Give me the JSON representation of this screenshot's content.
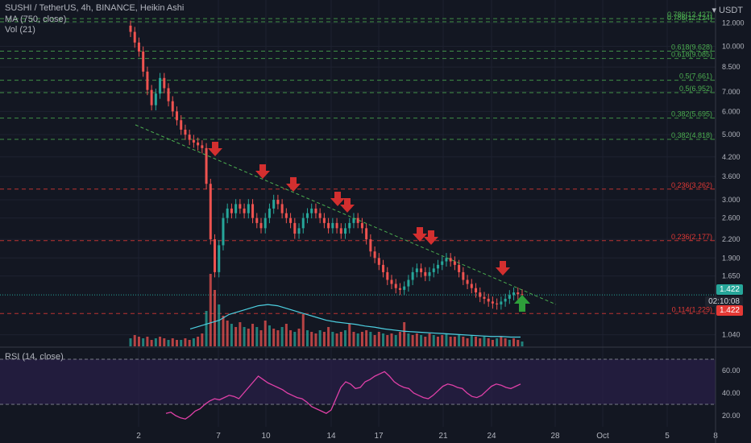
{
  "header": {
    "title_line": "SUSHI / TetherUS, 4h, BINANCE, Heikin Ashi",
    "ma_line": "MA (750, close)",
    "vol_line": "Vol (21)",
    "rsi_line": "RSI (14, close)",
    "currency": "USDT"
  },
  "colors": {
    "background": "#131722",
    "up": "#26a69a",
    "down": "#ef5350",
    "fib_green": "#4caf50",
    "fib_red": "#e53935",
    "trendline": "#4caf50",
    "ma_line": "#4dd0e1",
    "rsi_line": "#e040a8",
    "rsi_band": "#2a1f48",
    "arrow_down": "#d32f2f",
    "arrow_up": "#2e9e3a"
  },
  "price_tags": {
    "last": "1.422",
    "countdown": "02:10:08",
    "fib_level": "1.422"
  },
  "chart_data": [
    {
      "type": "candlestick",
      "scale": "log",
      "y_ticks": [
        "12.000",
        "10.000",
        "8.500",
        "7.000",
        "6.000",
        "5.000",
        "4.200",
        "3.600",
        "3.000",
        "2.600",
        "2.200",
        "1.900",
        "1.650",
        "1.040"
      ],
      "x_ticks": [
        "2",
        "7",
        "10",
        "14",
        "17",
        "21",
        "24",
        "28",
        "Oct",
        "5",
        "8"
      ],
      "fib_levels": [
        {
          "label": "0.786(12.427)",
          "value": 12.427,
          "color": "green"
        },
        {
          "label": "0.786(12.124)",
          "value": 12.124,
          "color": "green"
        },
        {
          "label": "0.618(9.628)",
          "value": 9.628,
          "color": "green"
        },
        {
          "label": "0.618(9.085)",
          "value": 9.085,
          "color": "green"
        },
        {
          "label": "0.5(7.661)",
          "value": 7.661,
          "color": "green"
        },
        {
          "label": "0.5(6.952)",
          "value": 6.952,
          "color": "green"
        },
        {
          "label": "0.382(5.695)",
          "value": 5.695,
          "color": "green"
        },
        {
          "label": "0.382(4.818)",
          "value": 4.818,
          "color": "green"
        },
        {
          "label": "0.236(3.262)",
          "value": 3.262,
          "color": "red"
        },
        {
          "label": "0.236(2.177)",
          "value": 2.177,
          "color": "red"
        },
        {
          "label": "0.114(1.229)",
          "value": 1.229,
          "color": "red"
        }
      ],
      "candles": [
        11.2,
        10.3,
        9.6,
        8.2,
        7.1,
        6.3,
        6.9,
        7.8,
        7.2,
        6.5,
        6.0,
        5.6,
        5.2,
        5.0,
        4.8,
        4.7,
        4.6,
        4.5,
        3.4,
        2.2,
        1.7,
        2.1,
        2.6,
        2.8,
        2.7,
        2.9,
        2.8,
        2.7,
        2.9,
        2.6,
        2.5,
        2.4,
        2.6,
        2.8,
        3.0,
        2.9,
        2.7,
        2.6,
        2.5,
        2.3,
        2.4,
        2.6,
        2.7,
        2.8,
        2.7,
        2.6,
        2.5,
        2.4,
        2.5,
        2.4,
        2.3,
        2.4,
        2.5,
        2.6,
        2.5,
        2.4,
        2.2,
        2.0,
        1.9,
        1.8,
        1.7,
        1.6,
        1.55,
        1.5,
        1.48,
        1.52,
        1.6,
        1.7,
        1.75,
        1.7,
        1.65,
        1.7,
        1.75,
        1.8,
        1.85,
        1.9,
        1.85,
        1.8,
        1.7,
        1.6,
        1.55,
        1.5,
        1.45,
        1.4,
        1.38,
        1.35,
        1.33,
        1.32,
        1.35,
        1.38,
        1.42,
        1.45,
        1.43,
        1.42
      ],
      "volume": [
        0.5,
        0.7,
        0.6,
        0.5,
        0.6,
        0.4,
        0.5,
        0.6,
        0.5,
        0.4,
        0.5,
        0.4,
        0.4,
        0.5,
        0.4,
        0.5,
        0.6,
        0.8,
        2.2,
        4.5,
        3.5,
        2.6,
        1.9,
        1.6,
        1.4,
        1.2,
        1.5,
        1.2,
        1.1,
        1.4,
        1.2,
        1.0,
        1.6,
        1.3,
        1.1,
        1.0,
        1.2,
        1.4,
        1.0,
        0.9,
        1.1,
        2.0,
        1.0,
        0.9,
        0.8,
        1.0,
        0.9,
        1.2,
        0.9,
        0.8,
        0.9,
        1.0,
        1.4,
        0.9,
        0.8,
        0.9,
        1.0,
        0.9,
        0.7,
        0.9,
        0.8,
        0.7,
        0.8,
        0.7,
        0.9,
        1.5,
        0.8,
        0.7,
        0.8,
        0.7,
        0.6,
        0.8,
        0.7,
        0.6,
        0.7,
        0.8,
        0.6,
        0.6,
        0.7,
        0.6,
        0.5,
        0.7,
        0.6,
        0.5,
        0.6,
        0.5,
        0.4,
        0.5,
        0.6,
        0.5,
        0.4,
        0.5,
        0.4,
        0.3
      ],
      "rsi": [
        22,
        23,
        20,
        18,
        17,
        20,
        24,
        26,
        30,
        33,
        35,
        34,
        36,
        38,
        37,
        35,
        40,
        45,
        50,
        55,
        52,
        49,
        47,
        45,
        43,
        40,
        38,
        36,
        35,
        32,
        28,
        26,
        24,
        22,
        25,
        35,
        45,
        50,
        48,
        44,
        45,
        50,
        52,
        55,
        57,
        59,
        55,
        50,
        47,
        45,
        44,
        40,
        38,
        36,
        35,
        38,
        42,
        46,
        48,
        47,
        45,
        44,
        40,
        37,
        36,
        38,
        42,
        46,
        48,
        47,
        45,
        44,
        46,
        48
      ],
      "rsi_ticks": [
        "60.00",
        "40.00",
        "20.00"
      ]
    }
  ]
}
